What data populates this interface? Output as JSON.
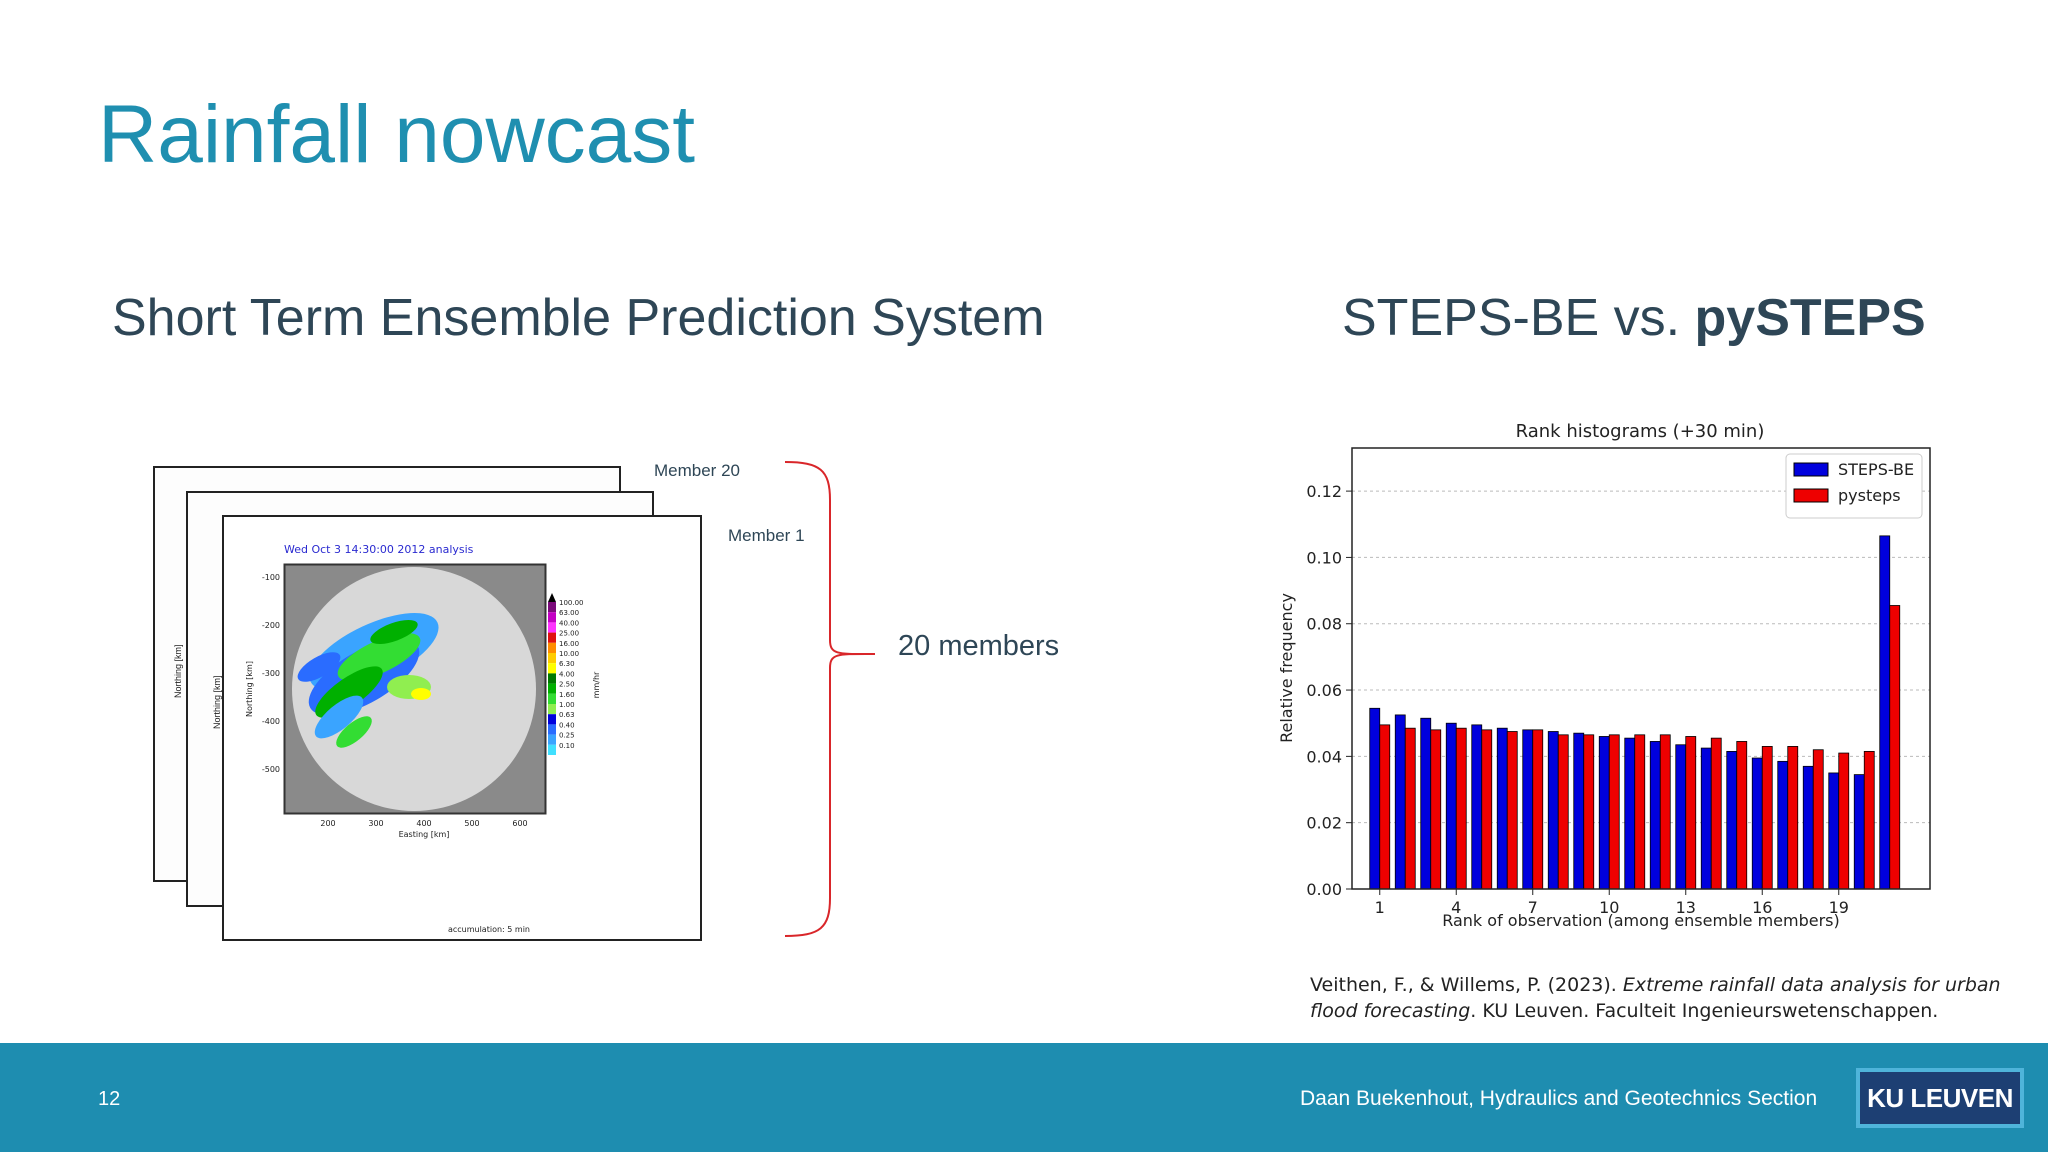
{
  "slide": {
    "title": "Rainfall nowcast",
    "left_heading": "Short Term Ensemble Prediction System",
    "right_heading_plain": "STEPS-BE vs. ",
    "right_heading_bold": "pySTEPS",
    "page_number": "12",
    "footer_text": "Daan Buekenhout, Hydraulics and Geotechnics Section",
    "logo_text": "KU LEUVEN",
    "colors": {
      "title": "#1f8fb0",
      "footer": "#1e8db0",
      "logo": "#1d3f73",
      "brace": "#d9262a"
    }
  },
  "ensemble": {
    "member_top_label": "Member 20",
    "member_front_label": "Member 1",
    "count_label": "20 members",
    "map_title": "Wed Oct  3 14:30:00 2012 analysis",
    "northing_label": "Northing [km]",
    "easting_label": "Easting [km]",
    "accumulation": "accumulation: 5 min",
    "units": "mm/hr",
    "y_ticks": [
      "-100",
      "-200",
      "-300",
      "-400",
      "-500"
    ],
    "x_ticks": [
      "200",
      "300",
      "400",
      "500",
      "600"
    ],
    "colorbar_labels": [
      "100.00",
      "63.00",
      "40.00",
      "25.00",
      "16.00",
      "10.00",
      "6.30",
      "4.00",
      "2.50",
      "1.60",
      "1.00",
      "0.63",
      "0.40",
      "0.25",
      "0.10"
    ],
    "colorbar_colors": [
      "#7a0a7a",
      "#c400c4",
      "#ff33ff",
      "#e01010",
      "#ff8c00",
      "#ffcc00",
      "#ffff00",
      "#007a00",
      "#00b000",
      "#33dd33",
      "#90ee50",
      "#0000dd",
      "#2a6cff",
      "#3aa4ff",
      "#40e0ff"
    ]
  },
  "chart_data": {
    "type": "bar",
    "title": "Rank histograms (+30 min)",
    "xlabel": "Rank of observation (among ensemble members)",
    "ylabel": "Relative frequency",
    "categories": [
      1,
      2,
      3,
      4,
      5,
      6,
      7,
      8,
      9,
      10,
      11,
      12,
      13,
      14,
      15,
      16,
      17,
      18,
      19,
      20,
      21
    ],
    "x_ticks": [
      1,
      4,
      7,
      10,
      13,
      16,
      19
    ],
    "ylim": [
      0,
      0.133
    ],
    "y_ticks": [
      0.0,
      0.02,
      0.04,
      0.06,
      0.08,
      0.1,
      0.12
    ],
    "y_tick_labels": [
      "0.00",
      "0.02",
      "0.04",
      "0.06",
      "0.08",
      "0.10",
      "0.12"
    ],
    "grid": "horizontal dotted",
    "legend_position": "top-right",
    "series": [
      {
        "name": "STEPS-BE",
        "color": "#0000dd",
        "values": [
          0.0545,
          0.0525,
          0.0515,
          0.05,
          0.0495,
          0.0485,
          0.048,
          0.0475,
          0.047,
          0.046,
          0.0455,
          0.0445,
          0.0435,
          0.0425,
          0.0415,
          0.0395,
          0.0385,
          0.037,
          0.035,
          0.0345,
          0.1065
        ]
      },
      {
        "name": "pysteps",
        "color": "#ee0000",
        "values": [
          0.0495,
          0.0485,
          0.048,
          0.0485,
          0.048,
          0.0475,
          0.048,
          0.0465,
          0.0465,
          0.0465,
          0.0465,
          0.0465,
          0.046,
          0.0455,
          0.0445,
          0.043,
          0.043,
          0.042,
          0.041,
          0.0415,
          0.0855
        ]
      }
    ]
  },
  "citation": {
    "authors": "Veithen, F., & Willems, P. (2023). ",
    "work": "Extreme rainfall data analysis for urban flood forecasting",
    "rest": ". KU Leuven. Faculteit Ingenieurswetenschappen."
  }
}
